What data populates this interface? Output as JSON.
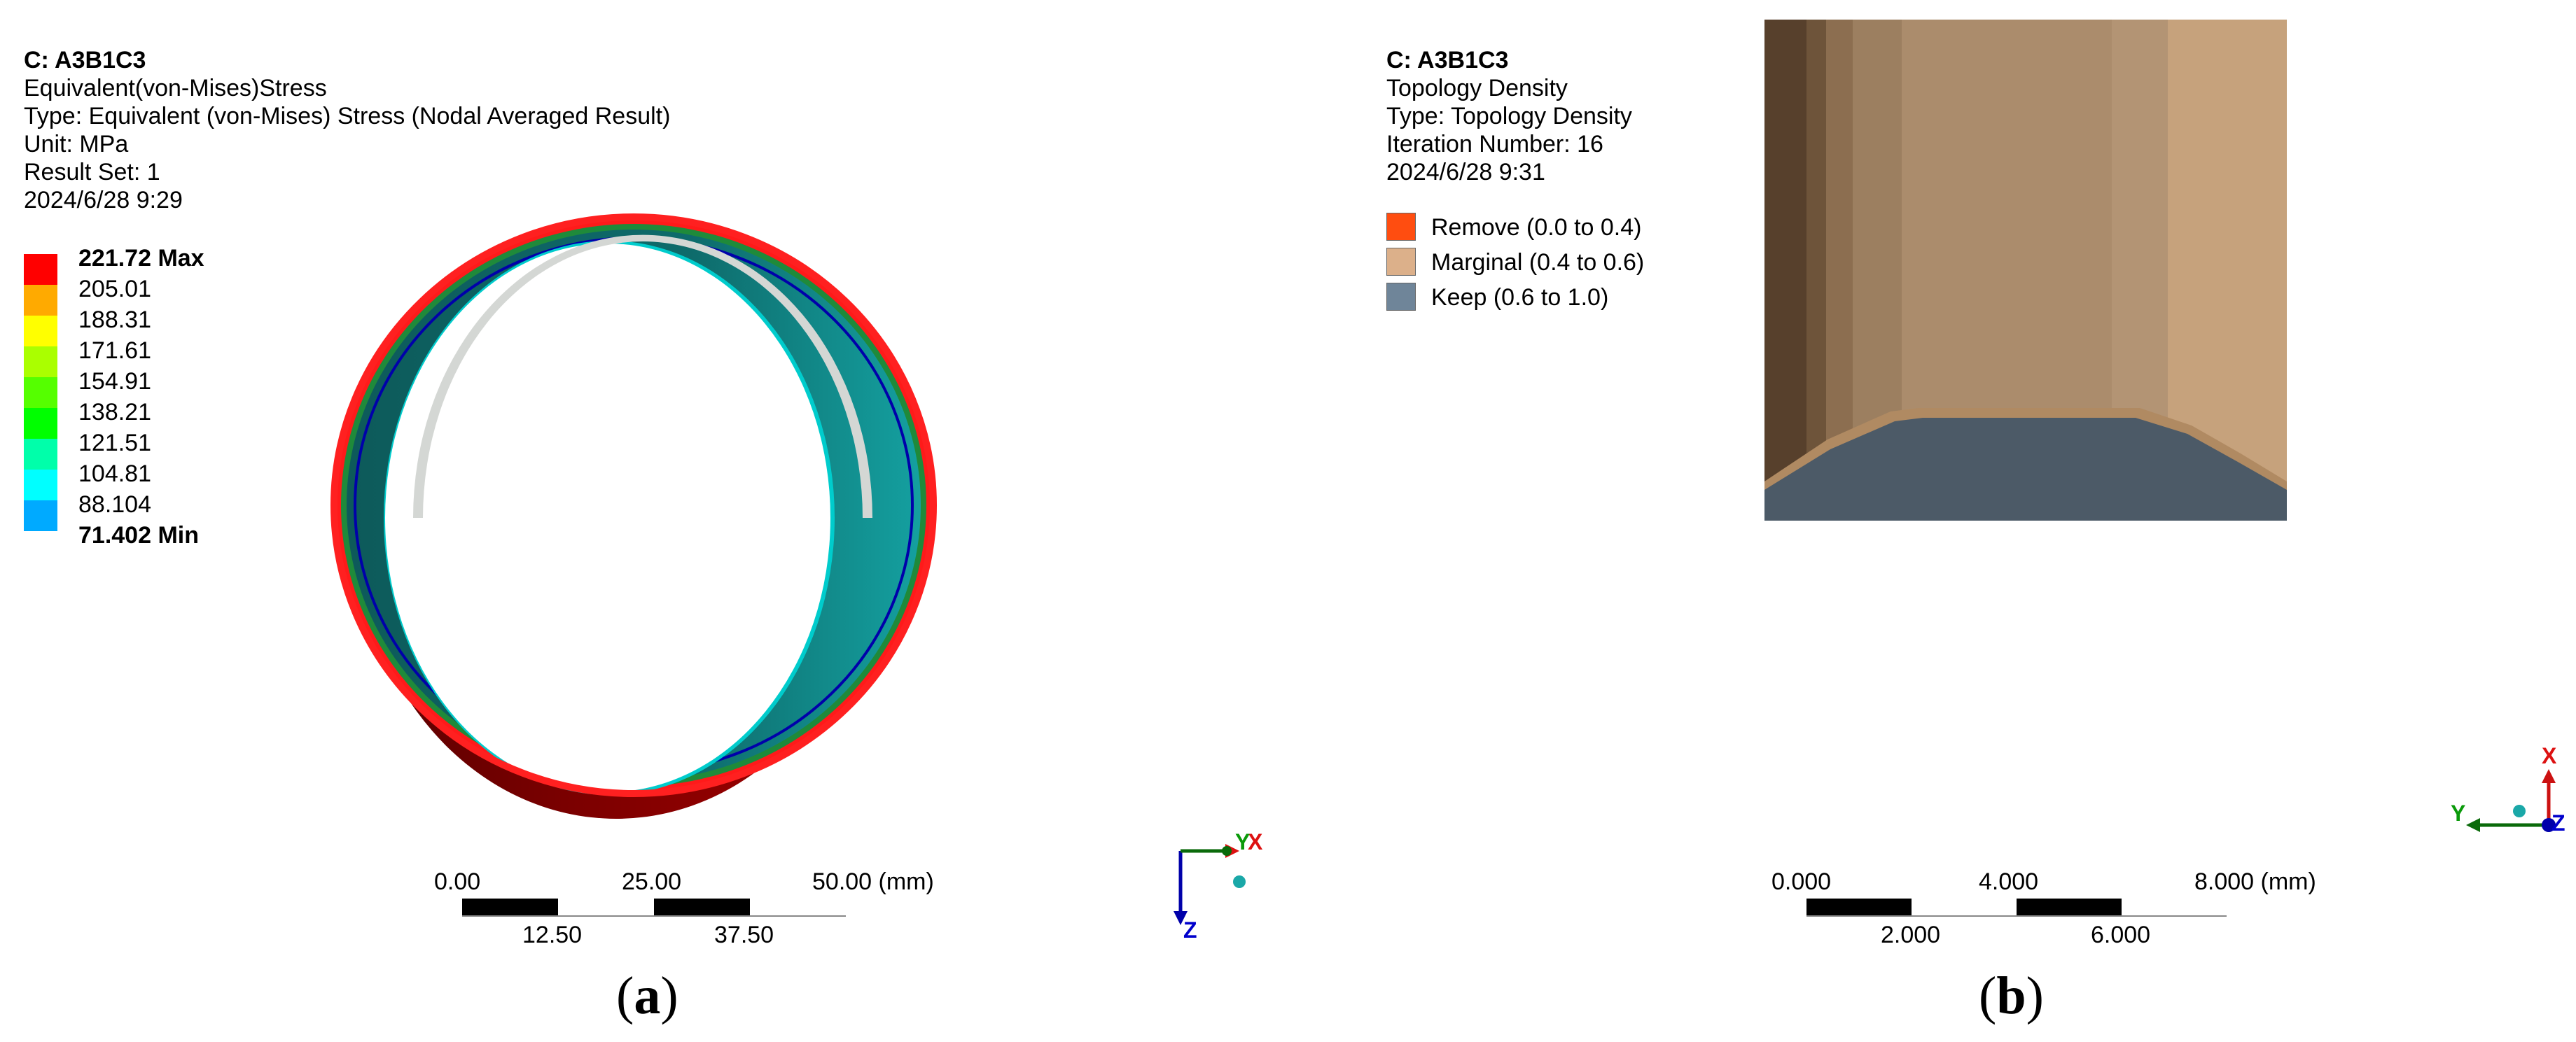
{
  "panel_a": {
    "info": {
      "title": "C: A3B1C3",
      "name": "Equivalent(von-Mises)Stress",
      "type": "Type: Equivalent (von-Mises) Stress (Nodal Averaged Result)",
      "unit": "Unit: MPa",
      "result_set": "Result Set: 1",
      "date": "2024/6/28 9:29"
    },
    "legend": [
      {
        "label": "221.72 Max",
        "color": "#ff0000",
        "bold": true
      },
      {
        "label": "205.01",
        "color": "#ffaa00",
        "bold": false
      },
      {
        "label": "188.31",
        "color": "#ffff00",
        "bold": false
      },
      {
        "label": "171.61",
        "color": "#aaff00",
        "bold": false
      },
      {
        "label": "154.91",
        "color": "#55ff00",
        "bold": false
      },
      {
        "label": "138.21",
        "color": "#00ff00",
        "bold": false
      },
      {
        "label": "121.51",
        "color": "#00ffaa",
        "bold": false
      },
      {
        "label": "104.81",
        "color": "#00ffff",
        "bold": false
      },
      {
        "label": "88.104",
        "color": "#00aaff",
        "bold": false
      },
      {
        "label": "71.402 Min",
        "color": "#0000ff",
        "bold": true
      }
    ],
    "scale": {
      "top_ticks": [
        "0.00",
        "25.00",
        "50.00 (mm)"
      ],
      "bottom_ticks": [
        "12.50",
        "37.50"
      ]
    },
    "axes": {
      "x": "X",
      "y": "Y",
      "z": "Z"
    },
    "caption_open": "(",
    "caption_letter": "a",
    "caption_close": ")"
  },
  "panel_b": {
    "info": {
      "title": "C: A3B1C3",
      "name": "Topology Density",
      "type": "Type: Topology Density",
      "iteration": "Iteration Number: 16",
      "date": "2024/6/28 9:31"
    },
    "legend": [
      {
        "label": "Remove (0.0 to 0.4)",
        "color": "#ff4d10"
      },
      {
        "label": "Marginal (0.4 to 0.6)",
        "color": "#dcb08a"
      },
      {
        "label": "Keep (0.6 to 1.0)",
        "color": "#6f8599"
      }
    ],
    "scale": {
      "top_ticks": [
        "0.000",
        "4.000",
        "8.000 (mm)"
      ],
      "bottom_ticks": [
        "2.000",
        "6.000"
      ]
    },
    "axes": {
      "x": "X",
      "y": "Y",
      "z": "Z"
    },
    "caption_open": "(",
    "caption_letter": "b",
    "caption_close": ")"
  }
}
